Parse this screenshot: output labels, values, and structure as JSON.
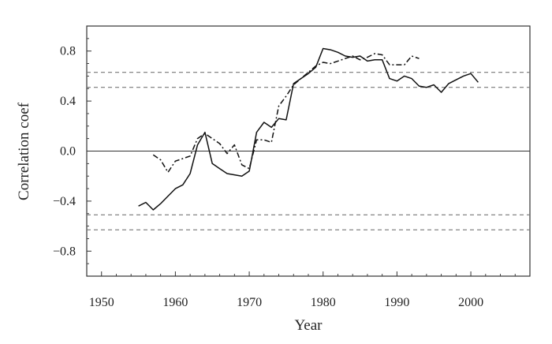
{
  "chart_data": {
    "type": "line",
    "title": "",
    "xlabel": "Year",
    "ylabel": "Correlation coef",
    "xlim": [
      1948,
      2008
    ],
    "ylim": [
      -1.0,
      1.0
    ],
    "xticks": [
      1950,
      1960,
      1970,
      1980,
      1990,
      2000
    ],
    "xtick_labels": [
      "1950",
      "1960",
      "1970",
      "1980",
      "1990",
      "2000"
    ],
    "yticks": [
      0.8,
      0.4,
      0.0,
      -0.4,
      -0.8
    ],
    "ytick_labels": [
      "0.8",
      "0.4",
      "0.0",
      "−0.4",
      "−0.8"
    ],
    "grid": false,
    "legend": "none",
    "zero_line": 0.0,
    "reference_lines": [
      0.63,
      0.51,
      -0.51,
      -0.63
    ],
    "series": [
      {
        "style": "solid",
        "color": "#111111",
        "x": [
          1955,
          1956,
          1957,
          1958,
          1959,
          1960,
          1961,
          1962,
          1963,
          1964,
          1965,
          1966,
          1967,
          1968,
          1969,
          1970,
          1971,
          1972,
          1973,
          1974,
          1975,
          1976,
          1977,
          1978,
          1979,
          1980,
          1981,
          1982,
          1983,
          1984,
          1985,
          1986,
          1987,
          1988,
          1989,
          1990,
          1991,
          1992,
          1993,
          1994,
          1995,
          1996,
          1997,
          1998,
          1999,
          2000,
          2001
        ],
        "y": [
          -0.44,
          -0.41,
          -0.47,
          -0.42,
          -0.36,
          -0.3,
          -0.27,
          -0.18,
          0.05,
          0.15,
          -0.1,
          -0.14,
          -0.18,
          -0.19,
          -0.2,
          -0.16,
          0.15,
          0.23,
          0.19,
          0.26,
          0.25,
          0.54,
          0.58,
          0.62,
          0.67,
          0.82,
          0.81,
          0.79,
          0.76,
          0.75,
          0.76,
          0.72,
          0.73,
          0.73,
          0.58,
          0.56,
          0.6,
          0.58,
          0.52,
          0.51,
          0.53,
          0.47,
          0.54,
          0.57,
          0.6,
          0.62,
          0.55
        ]
      },
      {
        "style": "dash-dot",
        "color": "#111111",
        "x": [
          1957,
          1958,
          1959,
          1960,
          1961,
          1962,
          1963,
          1964,
          1965,
          1966,
          1967,
          1968,
          1969,
          1970,
          1971,
          1972,
          1973,
          1974,
          1975,
          1976,
          1977,
          1978,
          1979,
          1980,
          1981,
          1982,
          1983,
          1984,
          1985,
          1986,
          1987,
          1988,
          1989,
          1990,
          1991,
          1992,
          1993
        ],
        "y": [
          -0.03,
          -0.07,
          -0.17,
          -0.08,
          -0.06,
          -0.04,
          0.1,
          0.14,
          0.1,
          0.06,
          -0.02,
          0.05,
          -0.11,
          -0.14,
          0.09,
          0.09,
          0.07,
          0.36,
          0.44,
          0.53,
          0.58,
          0.63,
          0.68,
          0.71,
          0.7,
          0.72,
          0.74,
          0.76,
          0.73,
          0.75,
          0.78,
          0.77,
          0.69,
          0.69,
          0.69,
          0.76,
          0.74
        ]
      }
    ]
  }
}
